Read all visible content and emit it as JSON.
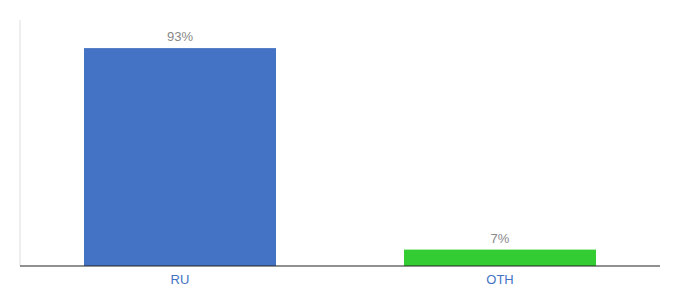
{
  "chart_data": {
    "type": "bar",
    "categories": [
      "RU",
      "OTH"
    ],
    "values": [
      93,
      7
    ],
    "value_labels": [
      "93%",
      "7%"
    ],
    "colors": [
      "#4472c4",
      "#33cc33"
    ],
    "ylim": [
      0,
      105
    ],
    "data_labels": true,
    "tick_labels": "x"
  }
}
